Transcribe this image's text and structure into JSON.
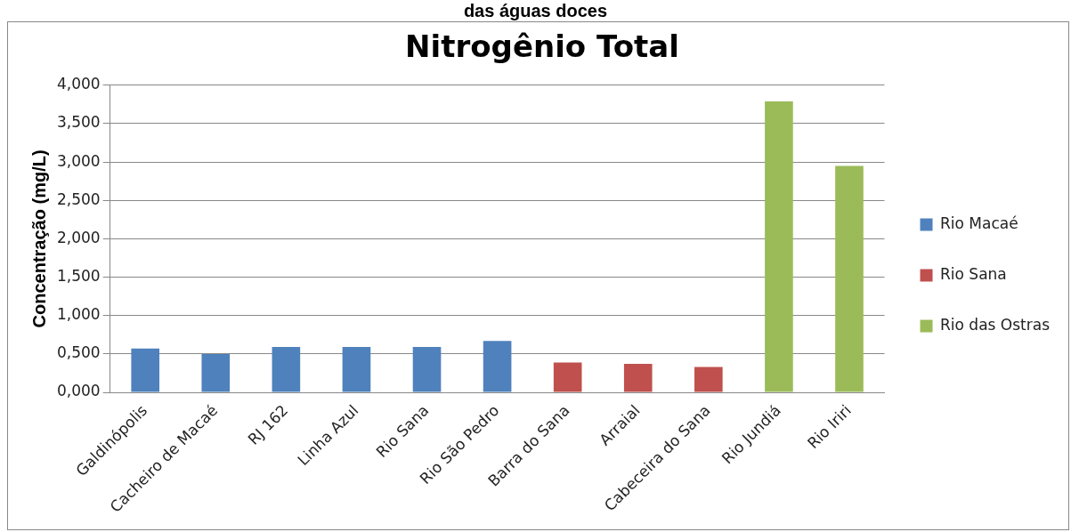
{
  "chart_data": {
    "type": "bar",
    "title": "Nitrogênio Total",
    "ylabel": "Concentração (mg/L)",
    "annotations": [
      "das águas doces"
    ],
    "categories": [
      "Galdinópolis",
      "Cacheiro de Macaé",
      "RJ 162",
      "Linha Azul",
      "Rio Sana",
      "Rio São Pedro",
      "Barra do Sana",
      "Arraial",
      "Cabeceira do Sana",
      "Rio Jundiá",
      "Rio Iriri"
    ],
    "series": [
      {
        "name": "Rio Macaé",
        "color": "#4f81bd",
        "values": [
          0.57,
          0.5,
          0.59,
          0.59,
          0.59,
          0.67,
          null,
          null,
          null,
          null,
          null
        ]
      },
      {
        "name": "Rio Sana",
        "color": "#c0504d",
        "values": [
          null,
          null,
          null,
          null,
          null,
          null,
          0.39,
          0.37,
          0.33,
          null,
          null
        ]
      },
      {
        "name": "Rio das Ostras",
        "color": "#9bbb59",
        "values": [
          null,
          null,
          null,
          null,
          null,
          null,
          null,
          null,
          null,
          3.79,
          2.95
        ]
      }
    ],
    "stacked": true,
    "ylim": [
      0,
      4
    ],
    "yticks": [
      {
        "value": 0,
        "label": "0,000"
      },
      {
        "value": 0.5,
        "label": "0,500"
      },
      {
        "value": 1,
        "label": "1,000"
      },
      {
        "value": 1.5,
        "label": "1,500"
      },
      {
        "value": 2,
        "label": "2,000"
      },
      {
        "value": 2.5,
        "label": "2,500"
      },
      {
        "value": 3,
        "label": "3,000"
      },
      {
        "value": 3.5,
        "label": "3,500"
      },
      {
        "value": 4,
        "label": "4,000"
      }
    ],
    "grid": "y",
    "legend": "right"
  }
}
